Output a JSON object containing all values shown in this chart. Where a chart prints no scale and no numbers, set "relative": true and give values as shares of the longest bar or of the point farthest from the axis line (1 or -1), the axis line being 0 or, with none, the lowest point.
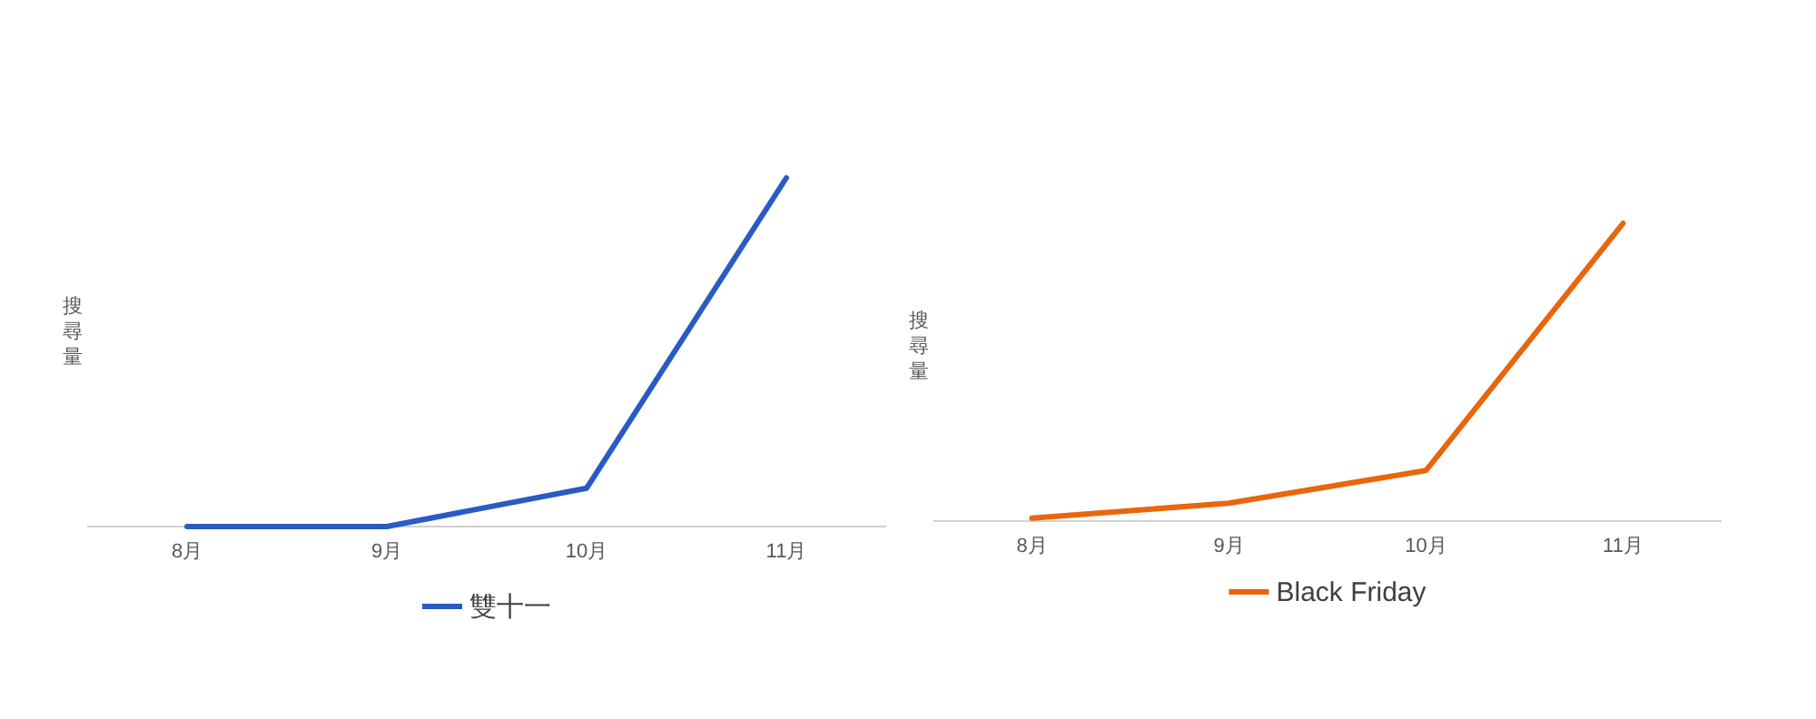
{
  "chart_data": [
    {
      "type": "line",
      "relative": true,
      "ylabel": "搜尋量",
      "categories": [
        "8月",
        "9月",
        "10月",
        "11月"
      ],
      "legend": "bottom",
      "series": [
        {
          "name": "雙十一",
          "color": "#2a5bc4",
          "values": [
            0,
            0,
            0.11,
            1
          ]
        }
      ]
    },
    {
      "type": "line",
      "relative": true,
      "ylabel": "搜尋量",
      "categories": [
        "8月",
        "9月",
        "10月",
        "11月"
      ],
      "legend": "bottom",
      "series": [
        {
          "name": "Black Friday",
          "color": "#e8660c",
          "values": [
            0.01,
            0.06,
            0.17,
            1
          ]
        }
      ]
    }
  ]
}
